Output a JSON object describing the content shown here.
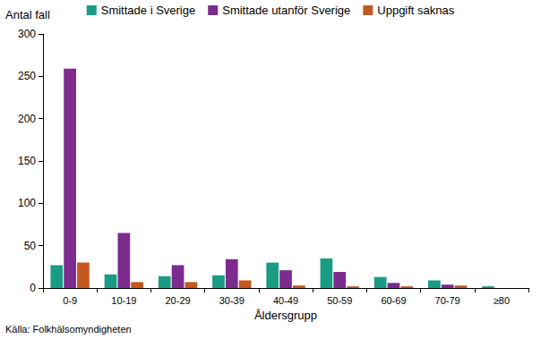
{
  "chart_data": {
    "type": "bar",
    "y_label": "Antal fall",
    "x_label": "Åldersgrupp",
    "annotations": [
      "Källa: Folkhälsomyndigheten"
    ],
    "categories": [
      "0-9",
      "10-19",
      "20-29",
      "30-39",
      "40-49",
      "50-59",
      "60-69",
      "70-79",
      "≥80"
    ],
    "series": [
      {
        "name": "Smittade i Sverige",
        "color": "#1a9c84",
        "values": [
          27,
          16,
          14,
          15,
          30,
          35,
          13,
          9,
          2
        ]
      },
      {
        "name": "Smittade utanför Sverige",
        "color": "#7b2c8e",
        "values": [
          259,
          65,
          27,
          34,
          21,
          19,
          6,
          4,
          0
        ]
      },
      {
        "name": "Uppgift saknas",
        "color": "#c4581f",
        "values": [
          30,
          7,
          7,
          9,
          3,
          2,
          2,
          3,
          0
        ]
      }
    ],
    "ylim": [
      0,
      300
    ],
    "yticks": [
      0,
      50,
      100,
      150,
      200,
      250,
      300
    ],
    "grid": false,
    "legend": "top"
  }
}
